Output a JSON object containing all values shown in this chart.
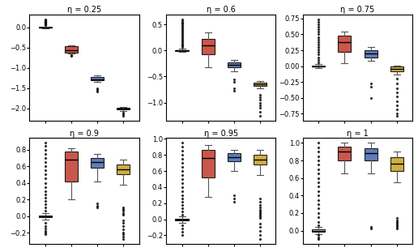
{
  "titles": [
    "η = 0.25",
    "η = 0.6",
    "η = 0.75",
    "η = 0.9",
    "η = 0.95",
    "η = 1"
  ],
  "box_fill_colors": [
    "#c8c8c8",
    "#c0392b",
    "#4466aa",
    "#c8a020"
  ],
  "figsize": [
    5.16,
    3.11
  ],
  "dpi": 100,
  "subplots": [
    {
      "stats": [
        {
          "med": 0.0,
          "q1": -0.01,
          "q3": 0.01,
          "whislo": -0.02,
          "whishi": 0.02,
          "fliers": [
            0.05,
            0.08,
            0.1,
            0.12,
            0.14,
            0.16,
            0.18,
            0.2
          ]
        },
        {
          "med": -0.56,
          "q1": -0.62,
          "q3": -0.47,
          "whislo": -0.65,
          "whishi": -0.44,
          "fliers": [
            -0.68,
            -0.7
          ]
        },
        {
          "med": -1.28,
          "q1": -1.31,
          "q3": -1.22,
          "whislo": -1.35,
          "whishi": -1.18,
          "fliers": [
            -1.5,
            -1.55,
            -1.58
          ]
        },
        {
          "med": -2.01,
          "q1": -2.03,
          "q3": -1.99,
          "whislo": -2.06,
          "whishi": -1.97,
          "fliers": [
            -2.1,
            -2.14,
            -2.18
          ]
        }
      ]
    },
    {
      "stats": [
        {
          "med": 0.0,
          "q1": -0.01,
          "q3": 0.01,
          "whislo": -0.03,
          "whishi": 0.03,
          "fliers": [
            0.06,
            0.09,
            0.12,
            0.15,
            0.18,
            0.21,
            0.24,
            0.27,
            0.3,
            0.33,
            0.36,
            0.39,
            0.42,
            0.45,
            0.48,
            0.51,
            0.54,
            0.57,
            0.6
          ]
        },
        {
          "med": 0.1,
          "q1": -0.08,
          "q3": 0.22,
          "whislo": -0.32,
          "whishi": 0.34,
          "fliers": []
        },
        {
          "med": -0.28,
          "q1": -0.33,
          "q3": -0.23,
          "whislo": -0.4,
          "whishi": -0.18,
          "fliers": [
            -0.55,
            -0.6,
            -0.72,
            -0.78
          ]
        },
        {
          "med": -0.65,
          "q1": -0.68,
          "q3": -0.62,
          "whislo": -0.73,
          "whishi": -0.59,
          "fliers": [
            -0.85,
            -0.9,
            -0.95,
            -1.0,
            -1.05,
            -1.1,
            -1.18,
            -1.25
          ]
        }
      ]
    },
    {
      "stats": [
        {
          "med": 0.0,
          "q1": -0.01,
          "q3": 0.01,
          "whislo": -0.03,
          "whishi": 0.03,
          "fliers": [
            0.06,
            0.1,
            0.14,
            0.18,
            0.22,
            0.26,
            0.3,
            0.34,
            0.38,
            0.42,
            0.46,
            0.5,
            0.54,
            0.58,
            0.62,
            0.66,
            0.7,
            0.74
          ]
        },
        {
          "med": 0.38,
          "q1": 0.22,
          "q3": 0.48,
          "whislo": 0.05,
          "whishi": 0.55,
          "fliers": []
        },
        {
          "med": 0.2,
          "q1": 0.14,
          "q3": 0.25,
          "whislo": 0.08,
          "whishi": 0.3,
          "fliers": [
            -0.28,
            -0.32,
            -0.5
          ]
        },
        {
          "med": -0.04,
          "q1": -0.08,
          "q3": -0.01,
          "whislo": -0.13,
          "whishi": 0.01,
          "fliers": [
            -0.2,
            -0.28,
            -0.35,
            -0.42,
            -0.48,
            -0.55,
            -0.62,
            -0.68,
            -0.75,
            -0.78
          ]
        }
      ]
    },
    {
      "stats": [
        {
          "med": 0.0,
          "q1": -0.01,
          "q3": 0.01,
          "whislo": -0.04,
          "whishi": 0.04,
          "fliers": [
            0.06,
            0.1,
            0.14,
            0.18,
            0.22,
            0.26,
            0.3,
            0.35,
            0.4,
            0.45,
            0.5,
            0.55,
            0.6,
            0.65,
            0.7,
            0.75,
            0.8,
            0.84,
            0.88,
            -0.08,
            -0.12,
            -0.15,
            -0.18,
            -0.2,
            -0.22
          ]
        },
        {
          "med": 0.68,
          "q1": 0.42,
          "q3": 0.78,
          "whislo": 0.2,
          "whishi": 0.82,
          "fliers": []
        },
        {
          "med": 0.65,
          "q1": 0.58,
          "q3": 0.7,
          "whislo": 0.42,
          "whishi": 0.75,
          "fliers": [
            0.15,
            0.12,
            0.1
          ]
        },
        {
          "med": 0.56,
          "q1": 0.5,
          "q3": 0.62,
          "whislo": 0.38,
          "whishi": 0.68,
          "fliers": [
            0.02,
            0.04,
            0.06,
            0.08,
            0.1,
            -0.05,
            -0.08,
            -0.12,
            -0.16,
            -0.2,
            -0.22,
            -0.25,
            -0.28
          ]
        }
      ]
    },
    {
      "stats": [
        {
          "med": 0.0,
          "q1": -0.01,
          "q3": 0.01,
          "whislo": -0.04,
          "whishi": 0.04,
          "fliers": [
            0.06,
            0.1,
            0.14,
            0.18,
            0.22,
            0.26,
            0.3,
            0.35,
            0.4,
            0.45,
            0.5,
            0.55,
            0.6,
            0.65,
            0.7,
            0.75,
            0.8,
            0.85,
            0.9,
            0.95,
            -0.08,
            -0.12,
            -0.16,
            -0.2
          ]
        },
        {
          "med": 0.76,
          "q1": 0.52,
          "q3": 0.86,
          "whislo": 0.28,
          "whishi": 0.92,
          "fliers": []
        },
        {
          "med": 0.77,
          "q1": 0.72,
          "q3": 0.82,
          "whislo": 0.6,
          "whishi": 0.86,
          "fliers": [
            0.22,
            0.26,
            0.3
          ]
        },
        {
          "med": 0.74,
          "q1": 0.68,
          "q3": 0.8,
          "whislo": 0.55,
          "whishi": 0.86,
          "fliers": [
            0.02,
            0.04,
            0.06,
            0.08,
            0.1,
            0.12,
            0.15,
            0.18,
            0.22,
            0.26,
            -0.05,
            -0.1,
            -0.15,
            -0.2,
            -0.25
          ]
        }
      ]
    },
    {
      "stats": [
        {
          "med": 0.0,
          "q1": -0.01,
          "q3": 0.01,
          "whislo": -0.04,
          "whishi": 0.04,
          "fliers": [
            0.06,
            0.1,
            0.15,
            0.2,
            0.25,
            0.3,
            0.35,
            0.4,
            0.45,
            0.5,
            0.55,
            0.6,
            0.65,
            0.7,
            0.75,
            0.8,
            0.85,
            0.9,
            0.95,
            1.0,
            -0.05,
            -0.08,
            -0.1
          ]
        },
        {
          "med": 0.9,
          "q1": 0.8,
          "q3": 0.96,
          "whislo": 0.65,
          "whishi": 1.0,
          "fliers": []
        },
        {
          "med": 0.88,
          "q1": 0.8,
          "q3": 0.94,
          "whislo": 0.65,
          "whishi": 1.0,
          "fliers": [
            0.02,
            0.04
          ]
        },
        {
          "med": 0.76,
          "q1": 0.68,
          "q3": 0.84,
          "whislo": 0.55,
          "whishi": 0.9,
          "fliers": [
            0.02,
            0.04,
            0.06,
            0.08,
            0.1,
            0.12,
            0.14
          ]
        }
      ]
    }
  ]
}
